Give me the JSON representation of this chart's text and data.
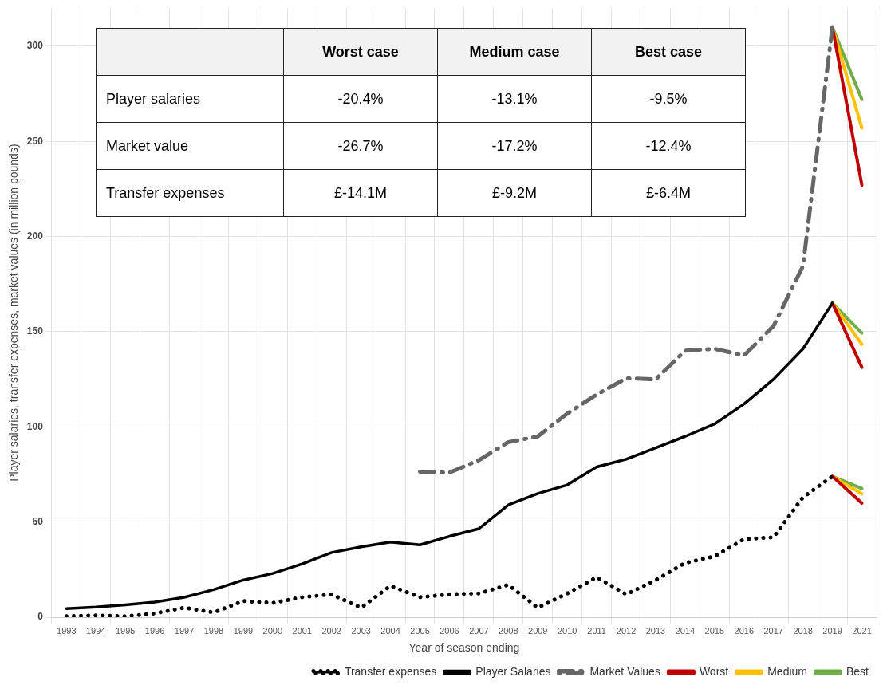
{
  "chart_data": [
    {
      "type": "line",
      "xlabel": "Year of season ending",
      "ylabel": "Player salaries, transfer expenses, market values (in million pounds)",
      "categories": [
        "1993",
        "1994",
        "1995",
        "1996",
        "1997",
        "1998",
        "1999",
        "2000",
        "2001",
        "2002",
        "2003",
        "2004",
        "2005",
        "2006",
        "2007",
        "2008",
        "2009",
        "2010",
        "2011",
        "2012",
        "2013",
        "2014",
        "2015",
        "2016",
        "2017",
        "2018",
        "2019",
        "2021"
      ],
      "series": [
        {
          "name": "Transfer expenses",
          "color": "#000000",
          "line_style": "dotted",
          "values": [
            0.5,
            1,
            0.5,
            2,
            5,
            2.5,
            8.5,
            7.5,
            10.5,
            12,
            5,
            16.5,
            10.5,
            12,
            12.5,
            17,
            5,
            12.5,
            21,
            12,
            19.5,
            28.5,
            32,
            41,
            42,
            63,
            74,
            null
          ]
        },
        {
          "name": "Player Salaries",
          "color": "#000000",
          "line_style": "solid",
          "values": [
            4.5,
            5.3,
            6.5,
            8,
            10.5,
            14.5,
            19.5,
            23,
            28,
            34,
            37,
            39.5,
            38,
            42.5,
            46.5,
            59,
            65,
            69.5,
            79,
            83,
            89,
            95,
            101.5,
            112,
            125,
            141,
            165,
            null
          ]
        },
        {
          "name": "Market Values",
          "color": "#666666",
          "line_style": "dashed",
          "values": [
            null,
            null,
            null,
            null,
            null,
            null,
            null,
            null,
            null,
            null,
            null,
            null,
            76.5,
            76,
            82.5,
            92,
            95,
            107,
            117,
            125.5,
            125,
            140,
            141,
            137.5,
            153,
            184.5,
            310,
            null
          ]
        },
        {
          "name": "Worst",
          "color": "#c00000",
          "line_style": "solid",
          "values": [
            null,
            null,
            null,
            null,
            null,
            null,
            null,
            null,
            null,
            null,
            null,
            null,
            null,
            null,
            null,
            null,
            null,
            null,
            null,
            null,
            null,
            null,
            null,
            null,
            null,
            null,
            165,
            131.3
          ]
        },
        {
          "name": "Medium",
          "color": "#ffc000",
          "line_style": "solid",
          "values": [
            null,
            null,
            null,
            null,
            null,
            null,
            null,
            null,
            null,
            null,
            null,
            null,
            null,
            null,
            null,
            null,
            null,
            null,
            null,
            null,
            null,
            null,
            null,
            null,
            null,
            null,
            165,
            143.4
          ]
        },
        {
          "name": "Best",
          "color": "#70ad47",
          "line_style": "solid",
          "values": [
            null,
            null,
            null,
            null,
            null,
            null,
            null,
            null,
            null,
            null,
            null,
            null,
            null,
            null,
            null,
            null,
            null,
            null,
            null,
            null,
            null,
            null,
            null,
            null,
            null,
            null,
            165,
            149.3
          ]
        },
        {
          "color": "#c00000",
          "line_style": "solid",
          "values": [
            null,
            null,
            null,
            null,
            null,
            null,
            null,
            null,
            null,
            null,
            null,
            null,
            null,
            null,
            null,
            null,
            null,
            null,
            null,
            null,
            null,
            null,
            null,
            null,
            null,
            null,
            310,
            227
          ]
        },
        {
          "color": "#ffc000",
          "line_style": "solid",
          "values": [
            null,
            null,
            null,
            null,
            null,
            null,
            null,
            null,
            null,
            null,
            null,
            null,
            null,
            null,
            null,
            null,
            null,
            null,
            null,
            null,
            null,
            null,
            null,
            null,
            null,
            null,
            310,
            257
          ]
        },
        {
          "color": "#70ad47",
          "line_style": "solid",
          "values": [
            null,
            null,
            null,
            null,
            null,
            null,
            null,
            null,
            null,
            null,
            null,
            null,
            null,
            null,
            null,
            null,
            null,
            null,
            null,
            null,
            null,
            null,
            null,
            null,
            null,
            null,
            310,
            272
          ]
        },
        {
          "color": "#c00000",
          "line_style": "solid",
          "values": [
            null,
            null,
            null,
            null,
            null,
            null,
            null,
            null,
            null,
            null,
            null,
            null,
            null,
            null,
            null,
            null,
            null,
            null,
            null,
            null,
            null,
            null,
            null,
            null,
            null,
            null,
            74,
            59.9
          ]
        },
        {
          "color": "#ffc000",
          "line_style": "solid",
          "values": [
            null,
            null,
            null,
            null,
            null,
            null,
            null,
            null,
            null,
            null,
            null,
            null,
            null,
            null,
            null,
            null,
            null,
            null,
            null,
            null,
            null,
            null,
            null,
            null,
            null,
            null,
            74,
            64.8
          ]
        },
        {
          "color": "#70ad47",
          "line_style": "solid",
          "values": [
            null,
            null,
            null,
            null,
            null,
            null,
            null,
            null,
            null,
            null,
            null,
            null,
            null,
            null,
            null,
            null,
            null,
            null,
            null,
            null,
            null,
            null,
            null,
            null,
            null,
            null,
            74,
            67.6
          ]
        }
      ],
      "ylim": [
        0,
        320
      ],
      "yticks": [
        0,
        50,
        100,
        150,
        200,
        250,
        300
      ],
      "grid": true,
      "legend": "bottom right",
      "marker": "none"
    },
    {
      "type": "other",
      "categories": [
        null,
        "Worst case",
        "Medium case",
        "Best case"
      ],
      "y_categories": [
        "Player salaries",
        "Market value",
        "Transfer expenses"
      ],
      "cell_labels": [
        [
          "-20.4%",
          "-13.1%",
          "-9.5%"
        ],
        [
          "-26.7%",
          "-17.2%",
          "-12.4%"
        ],
        [
          "£-14.1M",
          "£-9.2M",
          "£-6.4M"
        ]
      ]
    }
  ]
}
